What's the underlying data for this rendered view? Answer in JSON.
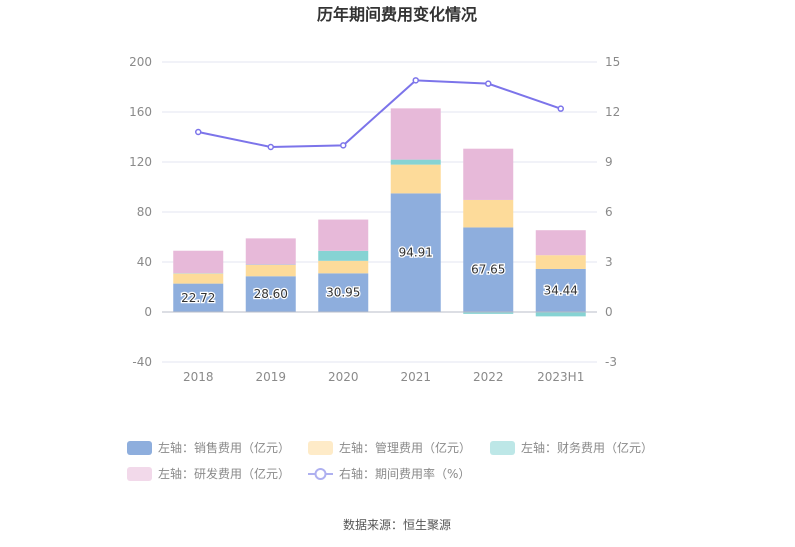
{
  "chart_data": {
    "type": "bar",
    "title": "历年期间费用变化情况",
    "categories": [
      "2018",
      "2019",
      "2020",
      "2021",
      "2022",
      "2023H1"
    ],
    "left_axis": {
      "ylim": [
        -40,
        200
      ],
      "ticks": [
        "-40",
        "0",
        "40",
        "80",
        "120",
        "160",
        "200"
      ]
    },
    "right_axis": {
      "ylim": [
        -3,
        15
      ],
      "ticks": [
        "-3",
        "0",
        "3",
        "6",
        "9",
        "12",
        "15"
      ]
    },
    "series": [
      {
        "name": "左轴：销售费用（亿元）",
        "axis": "left",
        "color": "#8eaedd",
        "values": [
          22.72,
          28.6,
          30.95,
          94.91,
          67.65,
          34.44
        ],
        "labels": [
          "22.72",
          "28.60",
          "30.95",
          "94.91",
          "67.65",
          "34.44"
        ]
      },
      {
        "name": "左轴：管理费用（亿元）",
        "axis": "left",
        "color": "#fddb9a",
        "values": [
          8,
          9,
          10,
          23,
          22,
          11
        ]
      },
      {
        "name": "左轴：财务费用（亿元）",
        "axis": "left",
        "color": "#86d3d3",
        "values": [
          0.3,
          0.3,
          8,
          4,
          -1.5,
          -3.5
        ]
      },
      {
        "name": "左轴：研发费用（亿元）",
        "axis": "left",
        "color": "#e7b9d9",
        "values": [
          18,
          21,
          25,
          41,
          41,
          20
        ]
      },
      {
        "name": "右轴：期间费用率（%）",
        "axis": "right",
        "type": "line",
        "color": "#7c74ea",
        "values": [
          10.8,
          9.9,
          10.0,
          13.9,
          13.7,
          12.2
        ]
      }
    ]
  },
  "source_text": "数据来源：恒生聚源"
}
